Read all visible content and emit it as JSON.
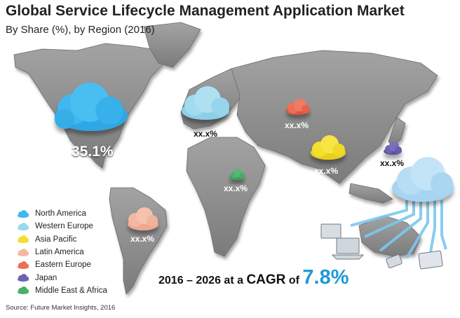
{
  "chart_data": {
    "type": "map",
    "title": "Global Service Lifecycle Management Application Market",
    "subtitle": "By Share (%), by Region (2016)",
    "series": [
      {
        "name": "North America",
        "value_label": "35.1%",
        "value": 35.1,
        "color": "#3fb8ee"
      },
      {
        "name": "Western Europe",
        "value_label": "xx.x%",
        "value": null,
        "color": "#9ad8ec"
      },
      {
        "name": "Asia Pacific",
        "value_label": "xx.x%",
        "value": null,
        "color": "#f4df2c"
      },
      {
        "name": "Latin America",
        "value_label": "xx.x%",
        "value": null,
        "color": "#f4b8a2"
      },
      {
        "name": "Eastern Europe",
        "value_label": "xx.x%",
        "value": null,
        "color": "#ee6e57"
      },
      {
        "name": "Japan",
        "value_label": "xx.x%",
        "value": null,
        "color": "#6c63b2"
      },
      {
        "name": "Middle East & Africa",
        "value_label": "xx.x%",
        "value": null,
        "color": "#4cae6a"
      }
    ],
    "cagr": {
      "prefix": "2016 – 2026 at a ",
      "word": "CAGR",
      "of": " of ",
      "value": "7.8%"
    },
    "source": "Source: Future Market Insights, 2016"
  }
}
